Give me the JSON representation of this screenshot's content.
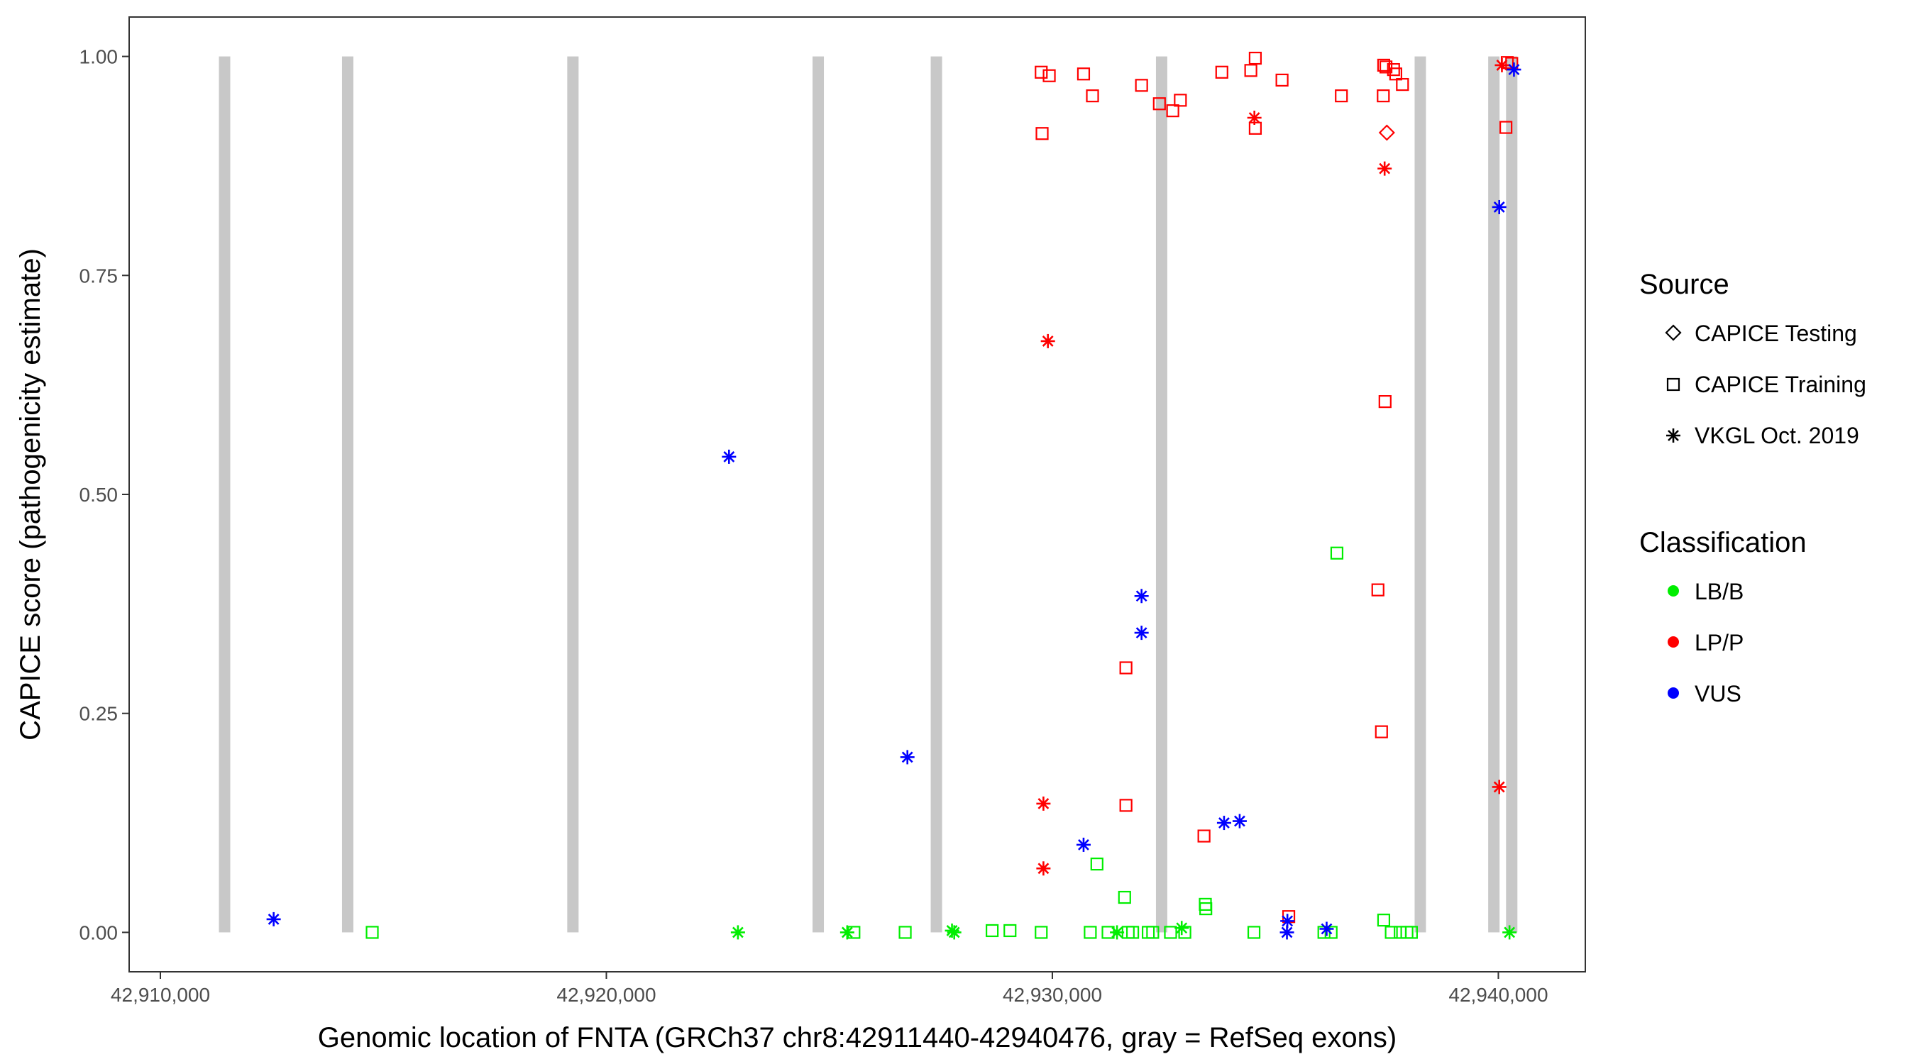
{
  "chart_data": {
    "type": "scatter",
    "xlabel": "Genomic location of FNTA (GRCh37 chr8:42911440-42940476, gray = RefSeq exons)",
    "ylabel": "CAPICE score (pathogenicity estimate)",
    "xlim": [
      42909300,
      42941950
    ],
    "ylim": [
      -0.045,
      1.045
    ],
    "x_ticks": [
      42910000,
      42920000,
      42930000,
      42940000
    ],
    "x_tick_labels": [
      "42,910,000",
      "42,920,000",
      "42,930,000",
      "42,940,000"
    ],
    "y_ticks": [
      0,
      0.25,
      0.5,
      0.75,
      1.0
    ],
    "y_tick_labels": [
      "0.00",
      "0.25",
      "0.50",
      "0.75",
      "1.00"
    ],
    "grid": false,
    "exons": [
      42911440,
      42914200,
      42919250,
      42924750,
      42927400,
      42932450,
      42938250,
      42939900,
      42940300
    ],
    "exon_color": "#c8c8c8",
    "legend": {
      "placement": "right",
      "source_title": "Source",
      "source_items": [
        {
          "label": "CAPICE Testing",
          "shape": "diamond"
        },
        {
          "label": "CAPICE Training",
          "shape": "square"
        },
        {
          "label": "VKGL Oct. 2019",
          "shape": "asterisk"
        }
      ],
      "class_title": "Classification",
      "class_items": [
        {
          "label": "LB/B",
          "color": "#00ee00"
        },
        {
          "label": "LP/P",
          "color": "#ff0000"
        },
        {
          "label": "VUS",
          "color": "#0000ff"
        }
      ]
    },
    "points": [
      {
        "x": 42912540,
        "y": 0.015,
        "shape": "asterisk",
        "class": "VUS"
      },
      {
        "x": 42914750,
        "y": 0.0,
        "shape": "square",
        "class": "LB/B"
      },
      {
        "x": 42922750,
        "y": 0.543,
        "shape": "asterisk",
        "class": "VUS"
      },
      {
        "x": 42922950,
        "y": 0.0,
        "shape": "asterisk",
        "class": "LB/B"
      },
      {
        "x": 42925400,
        "y": 0.0,
        "shape": "asterisk",
        "class": "LB/B"
      },
      {
        "x": 42925550,
        "y": 0.0,
        "shape": "square",
        "class": "LB/B"
      },
      {
        "x": 42926750,
        "y": 0.2,
        "shape": "asterisk",
        "class": "VUS"
      },
      {
        "x": 42926700,
        "y": 0.0,
        "shape": "square",
        "class": "LB/B"
      },
      {
        "x": 42927750,
        "y": 0.002,
        "shape": "asterisk",
        "class": "LB/B"
      },
      {
        "x": 42927800,
        "y": 0.0,
        "shape": "asterisk",
        "class": "LB/B"
      },
      {
        "x": 42928650,
        "y": 0.002,
        "shape": "square",
        "class": "LB/B"
      },
      {
        "x": 42929050,
        "y": 0.002,
        "shape": "square",
        "class": "LB/B"
      },
      {
        "x": 42929750,
        "y": 0.982,
        "shape": "square",
        "class": "LP/P"
      },
      {
        "x": 42929930,
        "y": 0.978,
        "shape": "square",
        "class": "LP/P"
      },
      {
        "x": 42929770,
        "y": 0.912,
        "shape": "square",
        "class": "LP/P"
      },
      {
        "x": 42929900,
        "y": 0.675,
        "shape": "asterisk",
        "class": "LP/P"
      },
      {
        "x": 42929800,
        "y": 0.147,
        "shape": "asterisk",
        "class": "LP/P"
      },
      {
        "x": 42929800,
        "y": 0.073,
        "shape": "asterisk",
        "class": "LP/P"
      },
      {
        "x": 42929750,
        "y": 0.0,
        "shape": "square",
        "class": "LB/B"
      },
      {
        "x": 42930700,
        "y": 0.98,
        "shape": "square",
        "class": "LP/P"
      },
      {
        "x": 42930900,
        "y": 0.955,
        "shape": "square",
        "class": "LP/P"
      },
      {
        "x": 42930700,
        "y": 0.1,
        "shape": "asterisk",
        "class": "VUS"
      },
      {
        "x": 42931000,
        "y": 0.078,
        "shape": "square",
        "class": "LB/B"
      },
      {
        "x": 42930850,
        "y": 0.0,
        "shape": "square",
        "class": "LB/B"
      },
      {
        "x": 42931250,
        "y": 0.0,
        "shape": "square",
        "class": "LB/B"
      },
      {
        "x": 42931450,
        "y": 0.0,
        "shape": "asterisk",
        "class": "LB/B"
      },
      {
        "x": 42931650,
        "y": 0.302,
        "shape": "square",
        "class": "LP/P"
      },
      {
        "x": 42931650,
        "y": 0.145,
        "shape": "square",
        "class": "LP/P"
      },
      {
        "x": 42931620,
        "y": 0.04,
        "shape": "square",
        "class": "LB/B"
      },
      {
        "x": 42931700,
        "y": 0.0,
        "shape": "square",
        "class": "LB/B"
      },
      {
        "x": 42931800,
        "y": 0.0,
        "shape": "square",
        "class": "LB/B"
      },
      {
        "x": 42932000,
        "y": 0.967,
        "shape": "square",
        "class": "LP/P"
      },
      {
        "x": 42932000,
        "y": 0.384,
        "shape": "asterisk",
        "class": "VUS"
      },
      {
        "x": 42932000,
        "y": 0.342,
        "shape": "asterisk",
        "class": "VUS"
      },
      {
        "x": 42932150,
        "y": 0.0,
        "shape": "square",
        "class": "LB/B"
      },
      {
        "x": 42932250,
        "y": 0.0,
        "shape": "square",
        "class": "LB/B"
      },
      {
        "x": 42932400,
        "y": 0.946,
        "shape": "square",
        "class": "LP/P"
      },
      {
        "x": 42932700,
        "y": 0.938,
        "shape": "square",
        "class": "LP/P"
      },
      {
        "x": 42932870,
        "y": 0.95,
        "shape": "square",
        "class": "LP/P"
      },
      {
        "x": 42932650,
        "y": 0.0,
        "shape": "square",
        "class": "LB/B"
      },
      {
        "x": 42932900,
        "y": 0.005,
        "shape": "asterisk",
        "class": "LB/B"
      },
      {
        "x": 42932970,
        "y": 0.0,
        "shape": "square",
        "class": "LB/B"
      },
      {
        "x": 42933400,
        "y": 0.11,
        "shape": "square",
        "class": "LP/P"
      },
      {
        "x": 42933430,
        "y": 0.032,
        "shape": "square",
        "class": "LB/B"
      },
      {
        "x": 42933440,
        "y": 0.027,
        "shape": "square",
        "class": "LB/B"
      },
      {
        "x": 42933800,
        "y": 0.982,
        "shape": "square",
        "class": "LP/P"
      },
      {
        "x": 42933850,
        "y": 0.125,
        "shape": "asterisk",
        "class": "VUS"
      },
      {
        "x": 42934200,
        "y": 0.127,
        "shape": "asterisk",
        "class": "VUS"
      },
      {
        "x": 42934450,
        "y": 0.984,
        "shape": "square",
        "class": "LP/P"
      },
      {
        "x": 42934550,
        "y": 0.998,
        "shape": "square",
        "class": "LP/P"
      },
      {
        "x": 42934530,
        "y": 0.93,
        "shape": "asterisk",
        "class": "LP/P"
      },
      {
        "x": 42934550,
        "y": 0.918,
        "shape": "square",
        "class": "LP/P"
      },
      {
        "x": 42934520,
        "y": 0.0,
        "shape": "square",
        "class": "LB/B"
      },
      {
        "x": 42935150,
        "y": 0.973,
        "shape": "square",
        "class": "LP/P"
      },
      {
        "x": 42935300,
        "y": 0.018,
        "shape": "square",
        "class": "LP/P"
      },
      {
        "x": 42935270,
        "y": 0.013,
        "shape": "asterisk",
        "class": "VUS"
      },
      {
        "x": 42935260,
        "y": 0.0,
        "shape": "asterisk",
        "class": "VUS"
      },
      {
        "x": 42936090,
        "y": 0.0,
        "shape": "square",
        "class": "LB/B"
      },
      {
        "x": 42936250,
        "y": 0.0,
        "shape": "square",
        "class": "LB/B"
      },
      {
        "x": 42936150,
        "y": 0.004,
        "shape": "asterisk",
        "class": "VUS"
      },
      {
        "x": 42936380,
        "y": 0.433,
        "shape": "square",
        "class": "LB/B"
      },
      {
        "x": 42936480,
        "y": 0.955,
        "shape": "square",
        "class": "LP/P"
      },
      {
        "x": 42937300,
        "y": 0.391,
        "shape": "square",
        "class": "LP/P"
      },
      {
        "x": 42937380,
        "y": 0.229,
        "shape": "square",
        "class": "LP/P"
      },
      {
        "x": 42937430,
        "y": 0.99,
        "shape": "square",
        "class": "LP/P"
      },
      {
        "x": 42937480,
        "y": 0.988,
        "shape": "square",
        "class": "LP/P"
      },
      {
        "x": 42937420,
        "y": 0.955,
        "shape": "square",
        "class": "LP/P"
      },
      {
        "x": 42937500,
        "y": 0.913,
        "shape": "diamond",
        "class": "LP/P"
      },
      {
        "x": 42937450,
        "y": 0.872,
        "shape": "asterisk",
        "class": "LP/P"
      },
      {
        "x": 42937460,
        "y": 0.606,
        "shape": "square",
        "class": "LP/P"
      },
      {
        "x": 42937430,
        "y": 0.014,
        "shape": "square",
        "class": "LB/B"
      },
      {
        "x": 42937600,
        "y": 0.0,
        "shape": "square",
        "class": "LB/B"
      },
      {
        "x": 42937650,
        "y": 0.985,
        "shape": "square",
        "class": "LP/P"
      },
      {
        "x": 42937700,
        "y": 0.98,
        "shape": "square",
        "class": "LP/P"
      },
      {
        "x": 42937850,
        "y": 0.968,
        "shape": "square",
        "class": "LP/P"
      },
      {
        "x": 42937800,
        "y": 0.0,
        "shape": "square",
        "class": "LB/B"
      },
      {
        "x": 42937950,
        "y": 0.0,
        "shape": "square",
        "class": "LB/B"
      },
      {
        "x": 42938050,
        "y": 0.0,
        "shape": "square",
        "class": "LB/B"
      },
      {
        "x": 42940080,
        "y": 0.99,
        "shape": "asterisk",
        "class": "LP/P"
      },
      {
        "x": 42940200,
        "y": 0.993,
        "shape": "square",
        "class": "LP/P"
      },
      {
        "x": 42940300,
        "y": 0.992,
        "shape": "square",
        "class": "LP/P"
      },
      {
        "x": 42940350,
        "y": 0.985,
        "shape": "asterisk",
        "class": "VUS"
      },
      {
        "x": 42940020,
        "y": 0.828,
        "shape": "asterisk",
        "class": "VUS"
      },
      {
        "x": 42940170,
        "y": 0.919,
        "shape": "square",
        "class": "LP/P"
      },
      {
        "x": 42940020,
        "y": 0.166,
        "shape": "asterisk",
        "class": "LP/P"
      },
      {
        "x": 42940250,
        "y": 0.0,
        "shape": "asterisk",
        "class": "LB/B"
      }
    ]
  }
}
